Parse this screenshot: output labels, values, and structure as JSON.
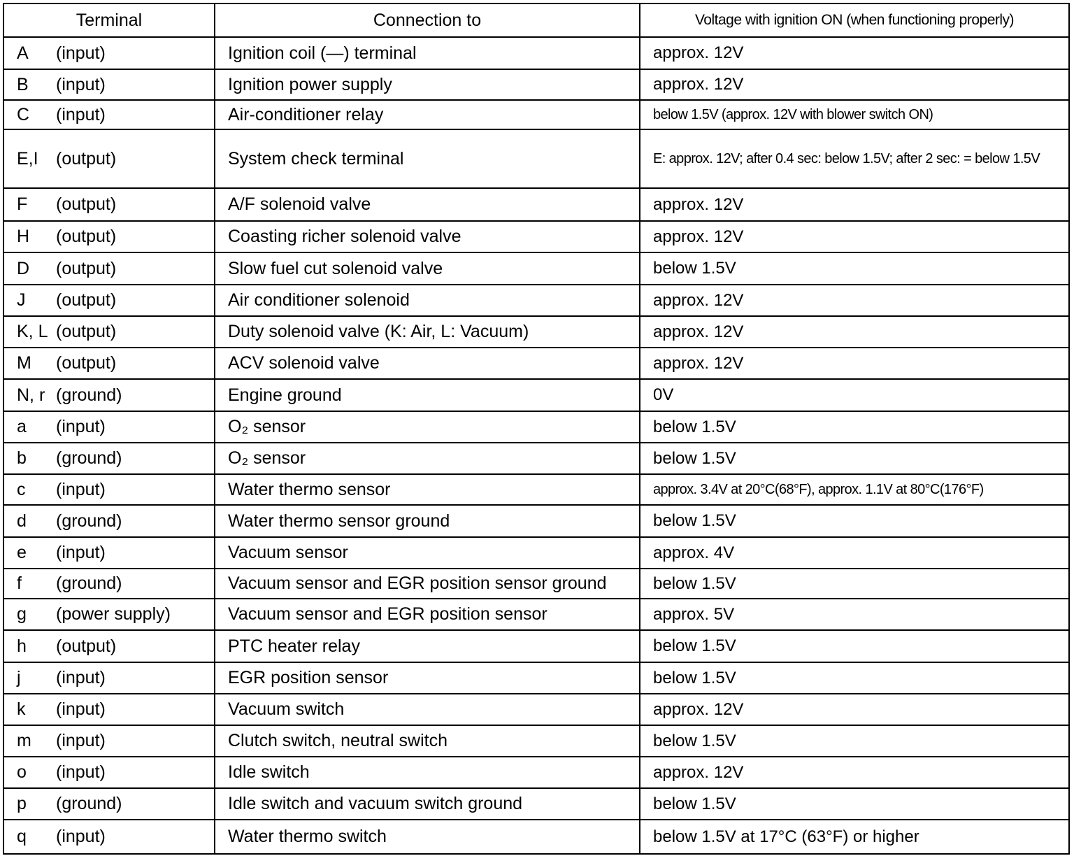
{
  "headers": {
    "terminal": "Terminal",
    "connection": "Connection to",
    "voltage": "Voltage with ignition ON (when functioning properly)"
  },
  "rows": [
    {
      "terminal": "A",
      "type": "(input)",
      "connection": "Ignition coil (—) terminal",
      "voltage": "approx. 12V"
    },
    {
      "terminal": "B",
      "type": "(input)",
      "connection": "Ignition power supply",
      "voltage": "approx. 12V"
    },
    {
      "terminal": "C",
      "type": "(input)",
      "connection": "Air-conditioner relay",
      "voltage": "below 1.5V (approx. 12V with blower switch ON)"
    },
    {
      "terminal": "E,I",
      "type": "(output)",
      "connection": "System check terminal",
      "voltage": "E: approx. 12V; after 0.4 sec: below 1.5V; after 2 sec: = below 1.5V"
    },
    {
      "terminal": "F",
      "type": "(output)",
      "connection": "A/F solenoid valve",
      "voltage": "approx. 12V"
    },
    {
      "terminal": "H",
      "type": "(output)",
      "connection": "Coasting richer solenoid valve",
      "voltage": "approx. 12V"
    },
    {
      "terminal": "D",
      "type": "(output)",
      "connection": "Slow fuel cut solenoid valve",
      "voltage": "below 1.5V"
    },
    {
      "terminal": "J",
      "type": "(output)",
      "connection": "Air conditioner solenoid",
      "voltage": "approx. 12V"
    },
    {
      "terminal": "K, L",
      "type": "(output)",
      "connection": "Duty solenoid valve (K: Air, L: Vacuum)",
      "voltage": "approx. 12V"
    },
    {
      "terminal": "M",
      "type": "(output)",
      "connection": "ACV solenoid valve",
      "voltage": "approx. 12V"
    },
    {
      "terminal": "N, r",
      "type": "(ground)",
      "connection": "Engine ground",
      "voltage": "0V"
    },
    {
      "terminal": "a",
      "type": "(input)",
      "connection": "O₂ sensor",
      "voltage": "below 1.5V"
    },
    {
      "terminal": "b",
      "type": "(ground)",
      "connection": "O₂ sensor",
      "voltage": "below 1.5V"
    },
    {
      "terminal": "c",
      "type": "(input)",
      "connection": "Water thermo sensor",
      "voltage": "approx. 3.4V at 20°C(68°F), approx. 1.1V at 80°C(176°F)"
    },
    {
      "terminal": "d",
      "type": "(ground)",
      "connection": "Water thermo sensor ground",
      "voltage": "below 1.5V"
    },
    {
      "terminal": "e",
      "type": "(input)",
      "connection": "Vacuum sensor",
      "voltage": "approx. 4V"
    },
    {
      "terminal": "f",
      "type": "(ground)",
      "connection": "Vacuum sensor and EGR position sensor ground",
      "voltage": "below 1.5V"
    },
    {
      "terminal": "g",
      "type": "(power supply)",
      "connection": "Vacuum sensor and EGR position sensor",
      "voltage": "approx. 5V"
    },
    {
      "terminal": "h",
      "type": "(output)",
      "connection": "PTC heater relay",
      "voltage": "below 1.5V"
    },
    {
      "terminal": "j",
      "type": "(input)",
      "connection": "EGR position sensor",
      "voltage": "below 1.5V"
    },
    {
      "terminal": "k",
      "type": "(input)",
      "connection": "Vacuum switch",
      "voltage": "approx. 12V"
    },
    {
      "terminal": "m",
      "type": "(input)",
      "connection": "Clutch switch, neutral switch",
      "voltage": "below 1.5V"
    },
    {
      "terminal": "o",
      "type": "(input)",
      "connection": "Idle switch",
      "voltage": "approx. 12V"
    },
    {
      "terminal": "p",
      "type": "(ground)",
      "connection": "Idle switch and vacuum switch ground",
      "voltage": "below 1.5V"
    },
    {
      "terminal": "q",
      "type": "(input)",
      "connection": "Water thermo switch",
      "voltage": "below 1.5V at 17°C (63°F) or higher"
    }
  ]
}
